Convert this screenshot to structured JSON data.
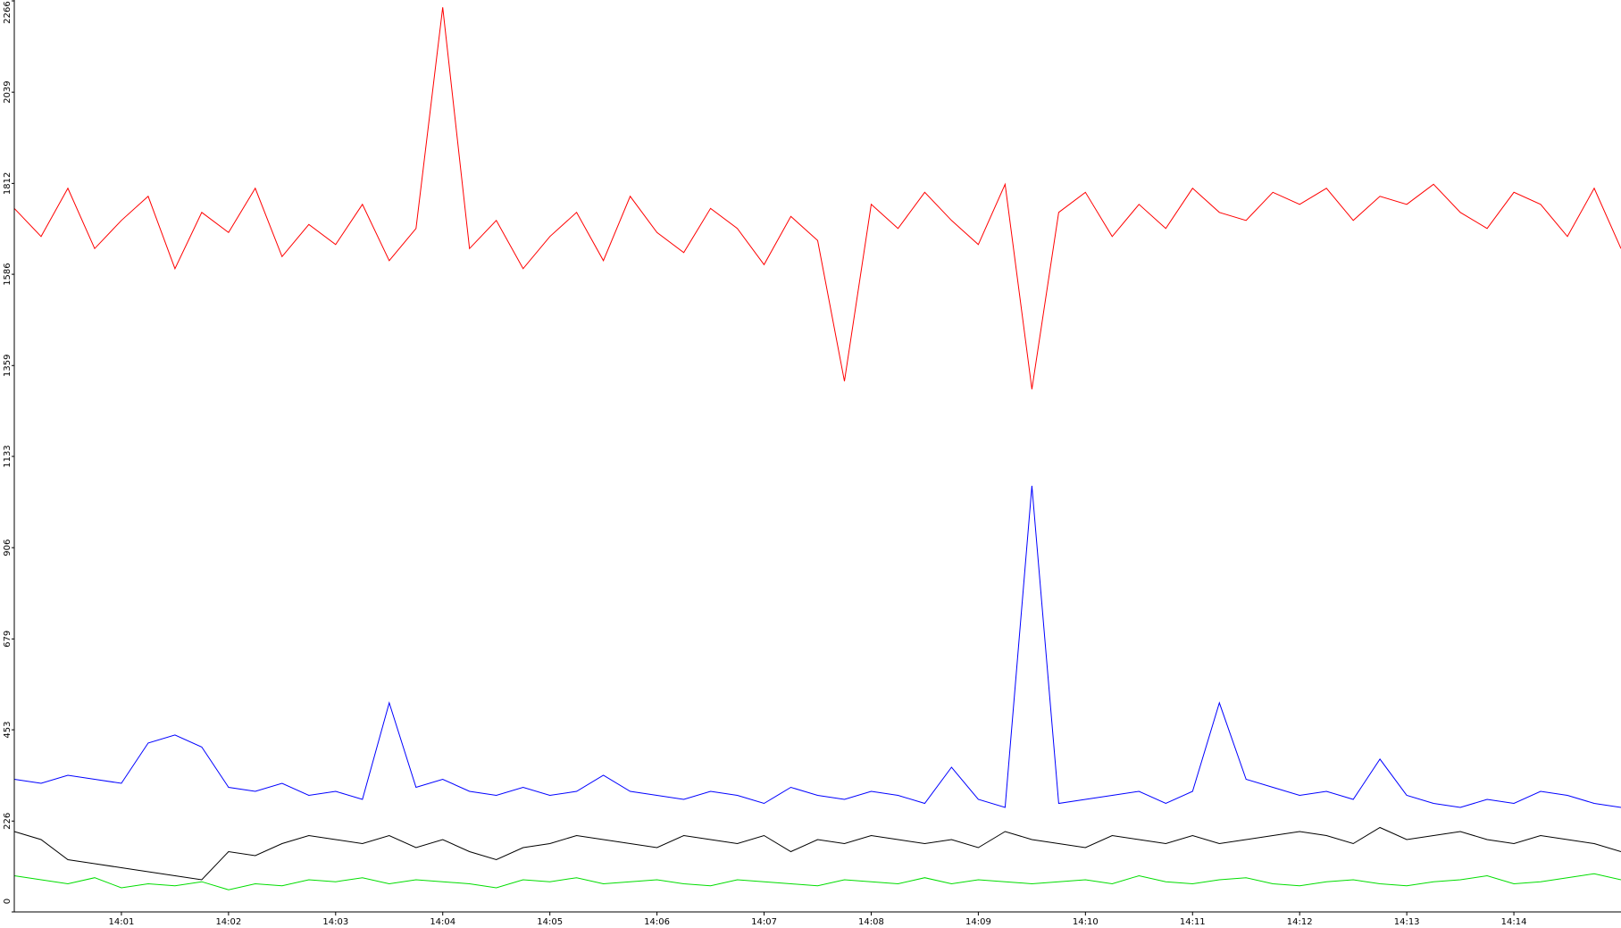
{
  "chart_data": {
    "type": "line",
    "x": [
      840,
      840.25,
      840.5,
      840.75,
      841,
      841.25,
      841.5,
      841.75,
      842,
      842.25,
      842.5,
      842.75,
      843,
      843.25,
      843.5,
      843.75,
      844,
      844.25,
      844.5,
      844.75,
      845,
      845.25,
      845.5,
      845.75,
      846,
      846.25,
      846.5,
      846.75,
      847,
      847.25,
      847.5,
      847.75,
      848,
      848.25,
      848.5,
      848.75,
      849,
      849.25,
      849.5,
      849.75,
      850,
      850.25,
      850.5,
      850.75,
      851,
      851.25,
      851.5,
      851.75,
      852,
      852.25,
      852.5,
      852.75,
      853,
      853.25,
      853.5,
      853.75,
      854,
      854.25,
      854.5,
      854.75,
      855
    ],
    "series": [
      {
        "color": "#ff0000",
        "values": [
          1750,
          1680,
          1800,
          1650,
          1720,
          1780,
          1600,
          1740,
          1690,
          1800,
          1630,
          1710,
          1660,
          1760,
          1620,
          1700,
          2250,
          1650,
          1720,
          1600,
          1680,
          1740,
          1620,
          1780,
          1690,
          1640,
          1750,
          1700,
          1610,
          1730,
          1670,
          1320,
          1760,
          1700,
          1790,
          1720,
          1660,
          1810,
          1300,
          1740,
          1790,
          1680,
          1760,
          1700,
          1800,
          1740,
          1720,
          1790,
          1760,
          1800,
          1720,
          1780,
          1760,
          1810,
          1740,
          1700,
          1790,
          1760,
          1680,
          1800,
          1650
        ]
      },
      {
        "color": "#0000ff",
        "values": [
          330,
          320,
          340,
          330,
          320,
          420,
          440,
          410,
          310,
          300,
          320,
          290,
          300,
          280,
          520,
          310,
          330,
          300,
          290,
          310,
          290,
          300,
          340,
          300,
          290,
          280,
          300,
          290,
          270,
          310,
          290,
          280,
          300,
          290,
          270,
          360,
          280,
          260,
          1060,
          270,
          280,
          290,
          300,
          270,
          300,
          520,
          330,
          310,
          290,
          300,
          280,
          380,
          290,
          270,
          260,
          280,
          270,
          300,
          290,
          270,
          260
        ]
      },
      {
        "color": "#000000",
        "values": [
          200,
          180,
          130,
          120,
          110,
          100,
          90,
          80,
          150,
          140,
          170,
          190,
          180,
          170,
          190,
          160,
          180,
          150,
          130,
          160,
          170,
          190,
          180,
          170,
          160,
          190,
          180,
          170,
          190,
          150,
          180,
          170,
          190,
          180,
          170,
          180,
          160,
          200,
          180,
          170,
          160,
          190,
          180,
          170,
          190,
          170,
          180,
          190,
          200,
          190,
          170,
          210,
          180,
          190,
          200,
          180,
          170,
          190,
          180,
          170,
          150
        ]
      },
      {
        "color": "#00dd00",
        "values": [
          90,
          80,
          70,
          85,
          60,
          70,
          65,
          75,
          55,
          70,
          65,
          80,
          75,
          85,
          70,
          80,
          75,
          70,
          60,
          80,
          75,
          85,
          70,
          75,
          80,
          70,
          65,
          80,
          75,
          70,
          65,
          80,
          75,
          70,
          85,
          70,
          80,
          75,
          70,
          75,
          80,
          70,
          90,
          75,
          70,
          80,
          85,
          70,
          65,
          75,
          80,
          70,
          65,
          75,
          80,
          90,
          70,
          75,
          85,
          95,
          80
        ]
      }
    ],
    "ylim": [
      0,
      2266
    ],
    "yticks": [
      0,
      226,
      453,
      679,
      906,
      1133,
      1359,
      1586,
      1812,
      2039,
      2266
    ],
    "xlim": [
      840,
      855
    ],
    "xticks": [
      {
        "value": 841,
        "label": "14:01"
      },
      {
        "value": 842,
        "label": "14:02"
      },
      {
        "value": 843,
        "label": "14:03"
      },
      {
        "value": 844,
        "label": "14:04"
      },
      {
        "value": 845,
        "label": "14:05"
      },
      {
        "value": 846,
        "label": "14:06"
      },
      {
        "value": 847,
        "label": "14:07"
      },
      {
        "value": 848,
        "label": "14:08"
      },
      {
        "value": 849,
        "label": "14:09"
      },
      {
        "value": 850,
        "label": "14:10"
      },
      {
        "value": 851,
        "label": "14:11"
      },
      {
        "value": 852,
        "label": "14:12"
      },
      {
        "value": 853,
        "label": "14:13"
      },
      {
        "value": 854,
        "label": "14:14"
      }
    ]
  }
}
